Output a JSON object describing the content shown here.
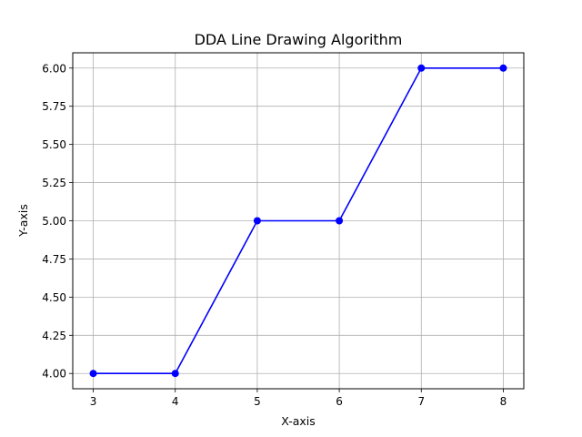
{
  "chart_data": {
    "type": "line",
    "title": "DDA Line Drawing Algorithm",
    "xlabel": "X-axis",
    "ylabel": "Y-axis",
    "xlim": [
      2.75,
      8.25
    ],
    "ylim": [
      3.9,
      6.1
    ],
    "x_ticks": [
      3,
      4,
      5,
      6,
      7,
      8
    ],
    "x_tick_labels": [
      "3",
      "4",
      "5",
      "6",
      "7",
      "8"
    ],
    "y_ticks": [
      4.0,
      4.25,
      4.5,
      4.75,
      5.0,
      5.25,
      5.5,
      5.75,
      6.0
    ],
    "y_tick_labels": [
      "4.00",
      "4.25",
      "4.50",
      "4.75",
      "5.00",
      "5.25",
      "5.50",
      "5.75",
      "6.00"
    ],
    "grid": true,
    "series": [
      {
        "color": "#0000ff",
        "marker": "circle",
        "x": [
          3,
          4,
          5,
          6,
          7,
          8
        ],
        "y": [
          4,
          4,
          5,
          5,
          6,
          6
        ]
      }
    ]
  }
}
